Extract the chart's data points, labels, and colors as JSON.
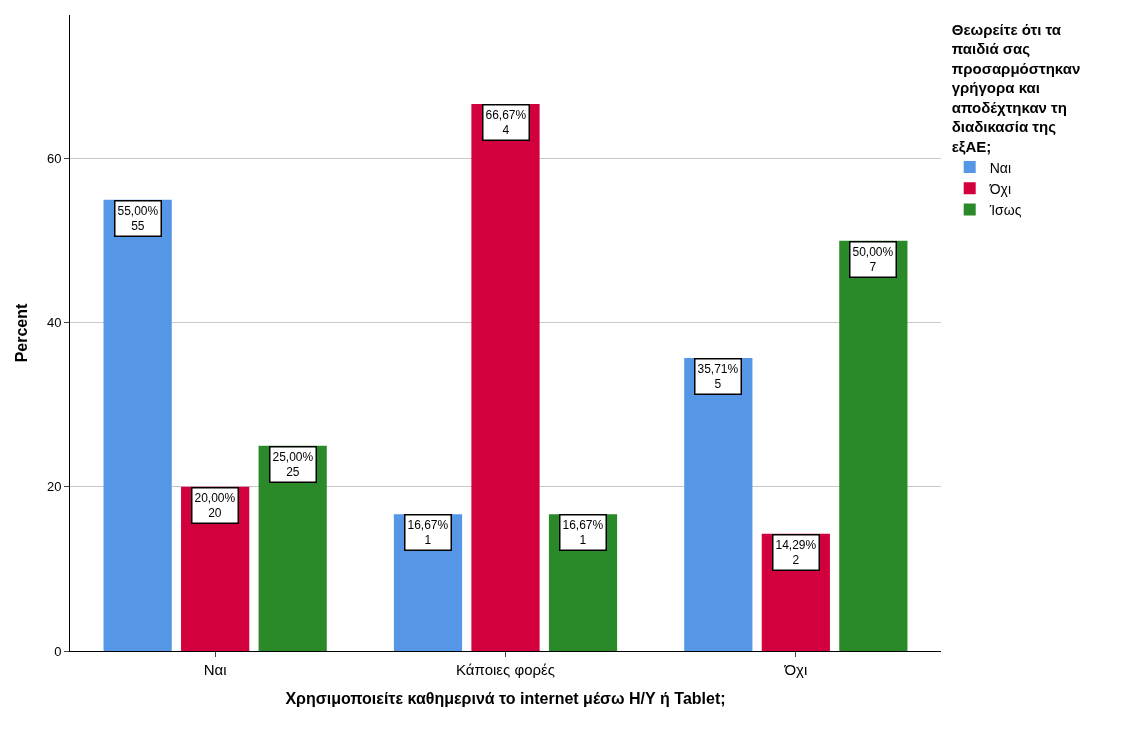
{
  "chart_data": {
    "type": "bar",
    "xlabel": "Χρησιμοποιείτε καθημερινά το internet μέσω Η/Υ ή Tablet;",
    "ylabel": "Percent",
    "legend_title": "Θεωρείτε ότι τα\nπαιδιά σας\nπροσαρμόστηκαν\nγρήγορα και\nαποδέχτηκαν τη\nδιαδικασία της\nεξΑΕ;",
    "categories": [
      "Ναι",
      "Κάποιες φορές",
      "Όχι"
    ],
    "series": [
      {
        "name": "Ναι",
        "color": "#5596e6",
        "values": [
          55,
          16.67,
          35.71
        ],
        "value_labels": [
          "55,00%\n55",
          "16,67%\n1",
          "35,71%\n5"
        ]
      },
      {
        "name": "Όχι",
        "color": "#d2003c",
        "values": [
          20,
          66.67,
          14.29
        ],
        "value_labels": [
          "20,00%\n20",
          "66,67%\n4",
          "14,29%\n2"
        ]
      },
      {
        "name": "Ίσως",
        "color": "#2a8a2a",
        "values": [
          25,
          16.67,
          50
        ],
        "value_labels": [
          "25,00%\n25",
          "16,67%\n1",
          "50,00%\n7"
        ]
      }
    ],
    "ylim": [
      0,
      77.5
    ],
    "yticks": [
      0,
      20,
      40,
      60
    ],
    "grid": "y",
    "legend": "top right"
  }
}
